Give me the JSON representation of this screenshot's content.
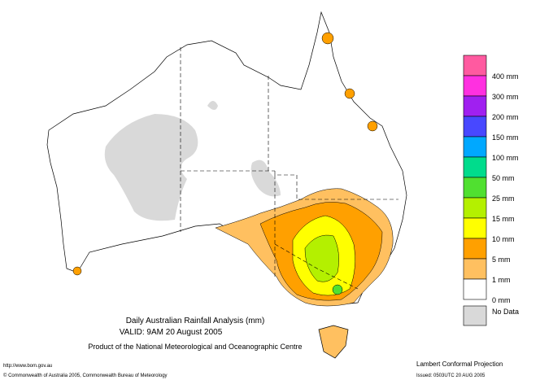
{
  "map": {
    "title": "Daily Australian Rainfall Analysis (mm)",
    "valid": "VALID: 9AM 20 August 2005",
    "product": "Product of the National Meteorological and Oceanographic Centre",
    "url": "http://www.bom.gov.au",
    "copyright": "© Commonwealth of Australia 2005, Commonwealth Bureau of Meteorology",
    "projection": "Lambert Conformal Projection",
    "issued": "Issued: 0503UTC 20 AUG 2005"
  },
  "legend": {
    "colors": [
      "#ff5aa0",
      "#ff30e0",
      "#a020f0",
      "#4848ff",
      "#00a8ff",
      "#00dc8c",
      "#50e030",
      "#b4f000",
      "#ffff00",
      "#ffa000",
      "#ffc060",
      "#ffffff",
      "#d9d9d9"
    ],
    "labels": [
      "400 mm",
      "300 mm",
      "200 mm",
      "150 mm",
      "100 mm",
      "50 mm",
      "25 mm",
      "15 mm",
      "10 mm",
      "5 mm",
      "1 mm",
      "0 mm",
      "No Data"
    ]
  }
}
